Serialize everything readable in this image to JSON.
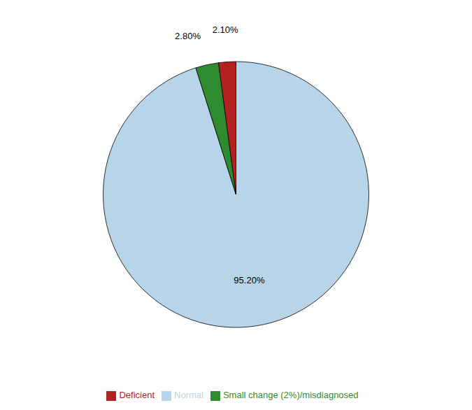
{
  "chart_data": {
    "type": "pie",
    "categories": [
      "Normal",
      "Small change (2%)/misdiagnosed",
      "Deficient"
    ],
    "values": [
      95.2,
      2.8,
      2.1
    ],
    "value_labels": [
      "95.20%",
      "2.80%",
      "2.10%"
    ],
    "colors": [
      "#b8d4e8",
      "#2e8b2e",
      "#b22222"
    ],
    "data_labels": true,
    "legend": "bottom"
  }
}
